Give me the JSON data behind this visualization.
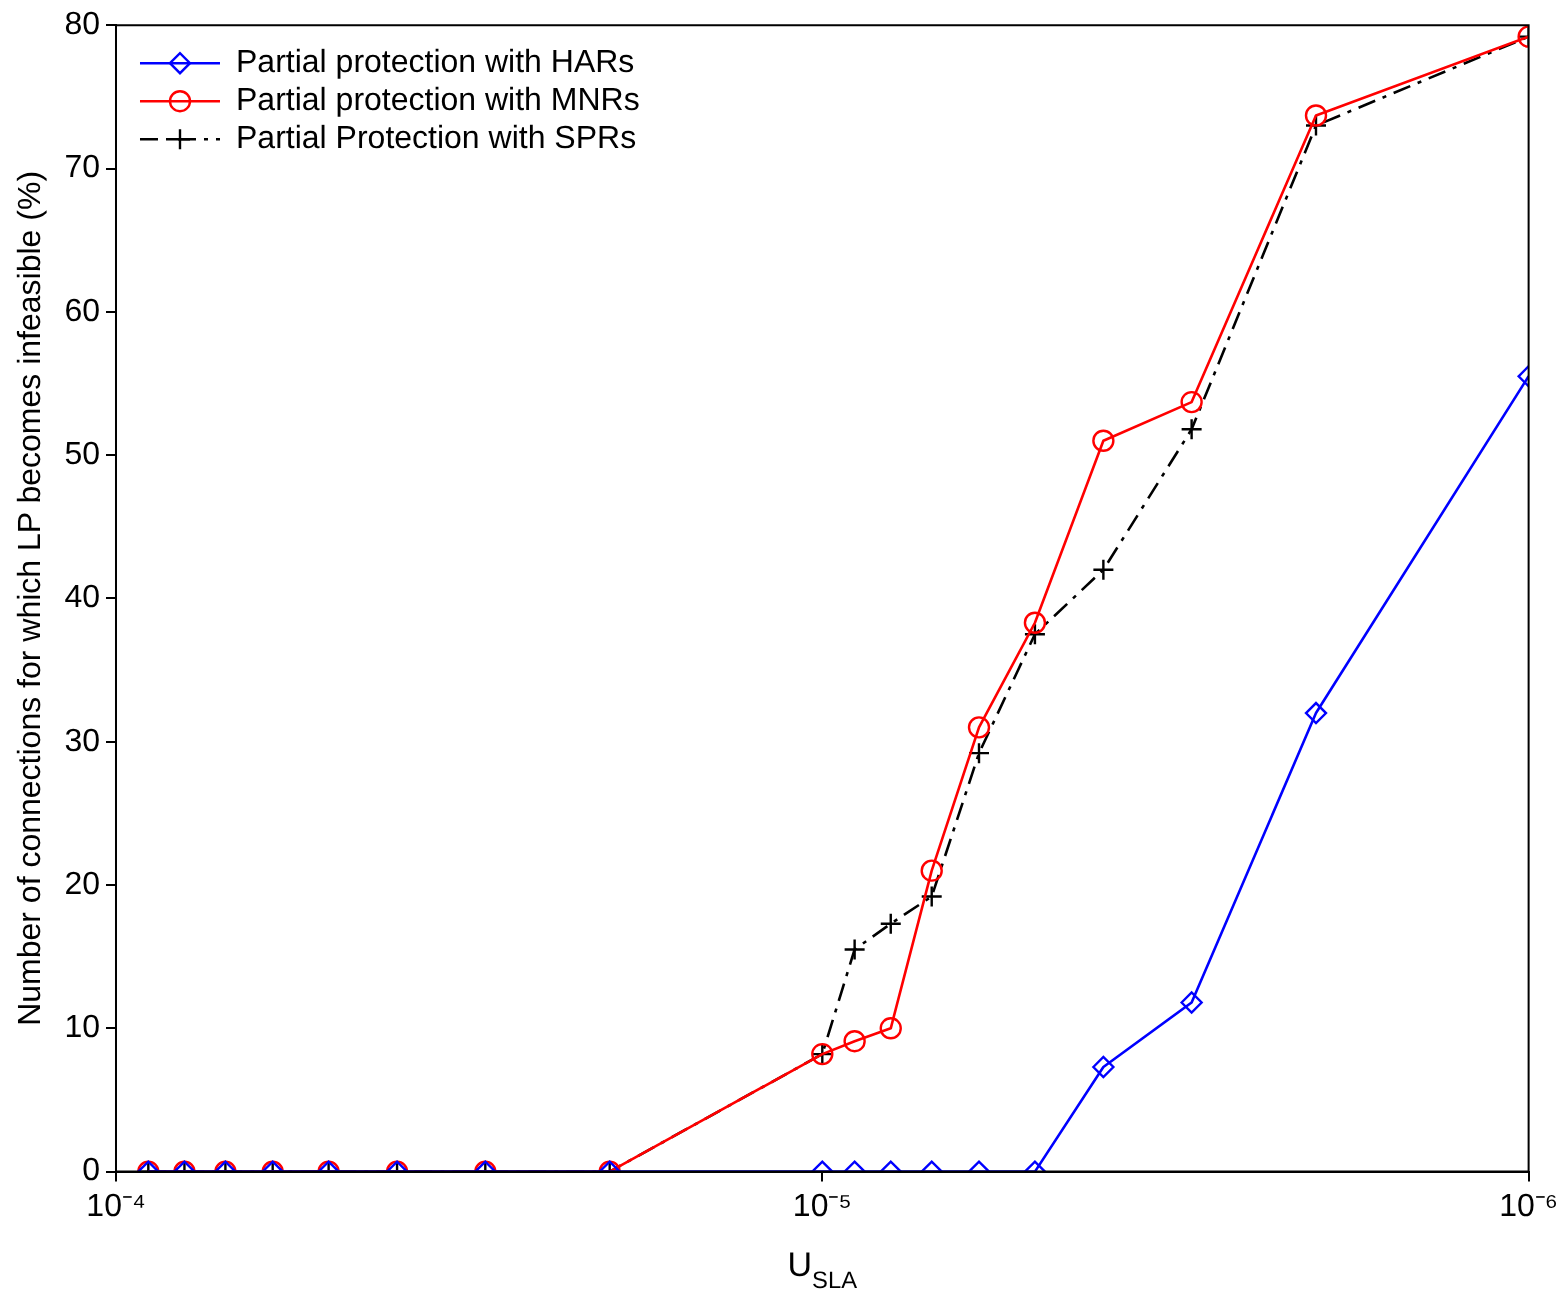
{
  "chart_data": {
    "type": "line",
    "xlabel": "U$_{SLA}$",
    "ylabel": "Number of connections for which LP becomes infeasible (%)",
    "x": [
      9e-05,
      8e-05,
      7e-05,
      6e-05,
      5e-05,
      4e-05,
      3e-05,
      2e-05,
      1e-05,
      9e-06,
      8e-06,
      7e-06,
      6e-06,
      5e-06,
      4e-06,
      3e-06,
      2e-06,
      1e-06
    ],
    "series": [
      {
        "name": "Partial protection with HARs",
        "color": "#0000ff",
        "marker": "diamond",
        "line_style": "solid",
        "values": [
          0,
          0,
          0,
          0,
          0,
          0,
          0,
          0,
          0,
          0,
          0,
          0,
          0,
          0,
          7.3,
          11.8,
          32,
          55.5
        ]
      },
      {
        "name": "Partial protection with MNRs",
        "color": "#ff0000",
        "marker": "circle",
        "line_style": "solid",
        "values": [
          0,
          0,
          0,
          0,
          0,
          0,
          0,
          0,
          8.2,
          9.1,
          10,
          21,
          31,
          38.3,
          51,
          53.7,
          73.7,
          79.2
        ]
      },
      {
        "name": "Partial Protection with SPRs",
        "color": "#000000",
        "marker": "cross",
        "line_style": "dashed",
        "values": [
          0,
          0,
          0,
          0,
          0,
          0,
          0,
          0,
          8.2,
          15.5,
          17.3,
          19.2,
          29.2,
          37.5,
          42,
          51.8,
          73,
          79.2
        ]
      }
    ],
    "log": "x",
    "xlim": [
      0.0001,
      1e-06
    ],
    "xticks": [
      {
        "value": 0.0001,
        "label": "10⁻⁴"
      },
      {
        "value": 1e-05,
        "label": "10⁻⁵"
      },
      {
        "value": 1e-06,
        "label": "10⁻⁶"
      }
    ],
    "ylim": [
      0,
      80
    ],
    "yticks": [
      0,
      10,
      20,
      30,
      40,
      50,
      60,
      70,
      80
    ],
    "grid": false,
    "legend": "top left"
  }
}
